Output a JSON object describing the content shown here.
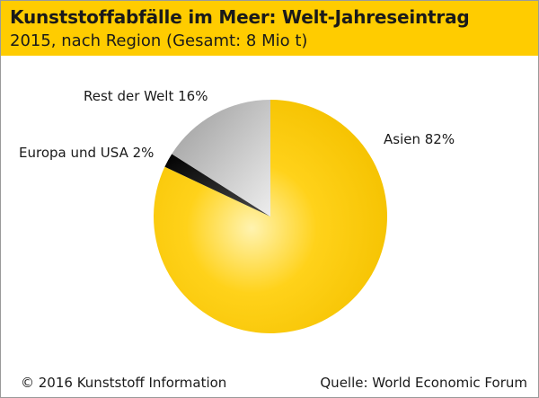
{
  "header": {
    "title": "Kunststoffabfälle im Meer: Welt-Jahreseintrag",
    "subtitle": "2015, nach Region (Gesamt: 8 Mio t)"
  },
  "footer": {
    "copyright": "© 2016 Kunststoff Information",
    "source": "Quelle: World Economic Forum"
  },
  "chart_data": {
    "type": "pie",
    "title": "Kunststoffabfälle im Meer: Welt-Jahreseintrag",
    "subtitle": "2015, nach Region (Gesamt: 8 Mio t)",
    "slices": [
      {
        "label": "Asien 82%",
        "category": "Asien",
        "value": 82,
        "color": "#ffcc00"
      },
      {
        "label": "Europa und USA 2%",
        "category": "Europa und USA",
        "value": 2,
        "color": "#1a1a1a"
      },
      {
        "label": "Rest der Welt 16%",
        "category": "Rest der Welt",
        "value": 16,
        "color": "#b4b4b4"
      }
    ]
  }
}
